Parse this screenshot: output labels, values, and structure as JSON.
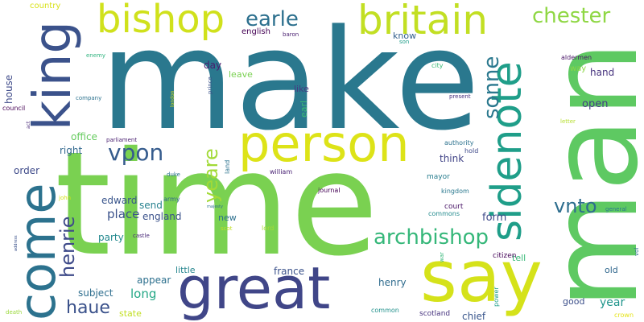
{
  "words": [
    {
      "text": "make",
      "color": "#2a788e"
    },
    {
      "text": "time",
      "color": "#7ad151"
    },
    {
      "text": "man",
      "color": "#5ec962"
    },
    {
      "text": "person",
      "color": "#dde318"
    },
    {
      "text": "great",
      "color": "#404688"
    },
    {
      "text": "say",
      "color": "#d5e21a"
    },
    {
      "text": "king",
      "color": "#3b528b"
    },
    {
      "text": "come",
      "color": "#2c728e"
    },
    {
      "text": "bishop",
      "color": "#d0e11c"
    },
    {
      "text": "britain",
      "color": "#c2df23"
    },
    {
      "text": "sidenote",
      "color": "#1f9e89"
    },
    {
      "text": "archbishop",
      "color": "#35b779"
    },
    {
      "text": "vpon",
      "color": "#365c8d"
    },
    {
      "text": "earle",
      "color": "#2d708e"
    },
    {
      "text": "chester",
      "color": "#8fd744"
    },
    {
      "text": "sonne",
      "color": "#2a788e"
    },
    {
      "text": "vnto",
      "color": "#2e6e8e"
    },
    {
      "text": "henrie",
      "color": "#3e4a89"
    },
    {
      "text": "yeare",
      "color": "#a2da37"
    },
    {
      "text": "haue",
      "color": "#3b528b"
    },
    {
      "text": "place",
      "color": "#3b528b"
    },
    {
      "text": "long",
      "color": "#22a785"
    },
    {
      "text": "year",
      "color": "#1f958b"
    },
    {
      "text": "form",
      "color": "#3e4989"
    },
    {
      "text": "open",
      "color": "#433e85"
    },
    {
      "text": "hand",
      "color": "#46337e"
    },
    {
      "text": "right",
      "color": "#31688e"
    },
    {
      "text": "office",
      "color": "#65cb5e"
    },
    {
      "text": "edward",
      "color": "#39558c"
    },
    {
      "text": "send",
      "color": "#26818e"
    },
    {
      "text": "england",
      "color": "#3b528b"
    },
    {
      "text": "day",
      "color": "#481d6f"
    },
    {
      "text": "leave",
      "color": "#7ad151"
    },
    {
      "text": "like",
      "color": "#453882"
    },
    {
      "text": "earl",
      "color": "#3dbc74"
    },
    {
      "text": "know",
      "color": "#34608d"
    },
    {
      "text": "english",
      "color": "#440154"
    },
    {
      "text": "country",
      "color": "#d8e219"
    },
    {
      "text": "house",
      "color": "#3e4a89"
    },
    {
      "text": "order",
      "color": "#3e4a89"
    },
    {
      "text": "think",
      "color": "#414487"
    },
    {
      "text": "party",
      "color": "#23898e"
    },
    {
      "text": "appear",
      "color": "#2d708e"
    },
    {
      "text": "subject",
      "color": "#2e6e8e"
    },
    {
      "text": "france",
      "color": "#3b528b"
    },
    {
      "text": "henry",
      "color": "#2f6c8e"
    },
    {
      "text": "little",
      "color": "#25858e"
    },
    {
      "text": "chief",
      "color": "#39568c"
    },
    {
      "text": "good",
      "color": "#3c4f8a"
    },
    {
      "text": "old",
      "color": "#31688e"
    },
    {
      "text": "new",
      "color": "#2d708e"
    },
    {
      "text": "tell",
      "color": "#38b977"
    },
    {
      "text": "state",
      "color": "#c2df23"
    },
    {
      "text": "common",
      "color": "#21918c"
    },
    {
      "text": "scotland",
      "color": "#46337e"
    },
    {
      "text": "citizen",
      "color": "#450559"
    },
    {
      "text": "power",
      "color": "#1f9e89"
    },
    {
      "text": "mayor",
      "color": "#287d8e"
    },
    {
      "text": "court",
      "color": "#481467"
    },
    {
      "text": "commons",
      "color": "#238a8d"
    },
    {
      "text": "kingdom",
      "color": "#2a788e"
    },
    {
      "text": "authority",
      "color": "#2c728e"
    },
    {
      "text": "hold",
      "color": "#3e4989"
    },
    {
      "text": "way",
      "color": "#8bd646"
    },
    {
      "text": "aldermen",
      "color": "#481467"
    },
    {
      "text": "city",
      "color": "#3aba76"
    },
    {
      "text": "present",
      "color": "#46307e"
    },
    {
      "text": "letter",
      "color": "#b5de2b"
    },
    {
      "text": "crown",
      "color": "#e5e419"
    },
    {
      "text": "general",
      "color": "#2a788e"
    },
    {
      "text": "vol",
      "color": "#2d708e"
    },
    {
      "text": "son",
      "color": "#1f9e89"
    },
    {
      "text": "baron",
      "color": "#481d6f"
    },
    {
      "text": "enemy",
      "color": "#2db27d"
    },
    {
      "text": "company",
      "color": "#2c728e"
    },
    {
      "text": "council",
      "color": "#440154"
    },
    {
      "text": "act",
      "color": "#482878"
    },
    {
      "text": "prince",
      "color": "#3b528b"
    },
    {
      "text": "london",
      "color": "#dde318"
    },
    {
      "text": "parliament",
      "color": "#481d6f"
    },
    {
      "text": "duke",
      "color": "#2c728e"
    },
    {
      "text": "army",
      "color": "#31688e"
    },
    {
      "text": "majesty",
      "color": "#2c728e"
    },
    {
      "text": "william",
      "color": "#482173"
    },
    {
      "text": "journal",
      "color": "#440154"
    },
    {
      "text": "land",
      "color": "#2c728e"
    },
    {
      "text": "lord",
      "color": "#a5db36"
    },
    {
      "text": "scot",
      "color": "#c2df23"
    },
    {
      "text": "castle",
      "color": "#482878"
    },
    {
      "text": "john",
      "color": "#d2e21b"
    },
    {
      "text": "address",
      "color": "#3b528b"
    },
    {
      "text": "death",
      "color": "#9bd93c"
    },
    {
      "text": "war",
      "color": "#35b779"
    }
  ]
}
